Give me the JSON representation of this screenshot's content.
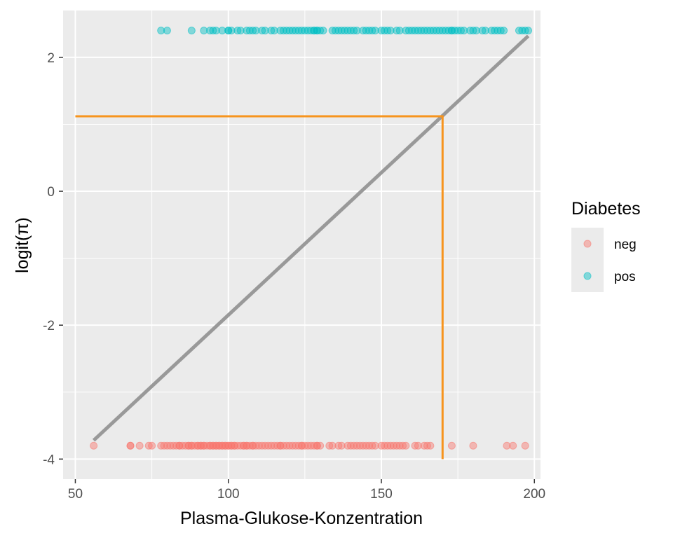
{
  "chart_data": {
    "type": "scatter",
    "xlabel": "Plasma-Glukose-Konzentration",
    "ylabel": "logit(π)",
    "xlim": [
      46,
      202
    ],
    "ylim": [
      -4.3,
      2.7
    ],
    "x_ticks": [
      50,
      100,
      150,
      200
    ],
    "y_ticks": [
      -4,
      -2,
      0,
      2
    ],
    "grid": true,
    "legend": {
      "title": "Diabetes",
      "placement": "right"
    },
    "series": [
      {
        "name": "neg",
        "color": "#F8766D",
        "y": -3.8,
        "x": [
          56,
          68,
          68,
          71,
          74,
          75,
          78,
          79,
          80,
          81,
          82,
          83,
          84,
          84,
          85,
          86,
          87,
          87,
          88,
          88,
          89,
          90,
          90,
          91,
          91,
          92,
          92,
          93,
          94,
          94,
          95,
          95,
          96,
          96,
          97,
          97,
          98,
          98,
          99,
          99,
          100,
          100,
          101,
          101,
          102,
          102,
          103,
          104,
          105,
          105,
          106,
          106,
          107,
          108,
          108,
          109,
          110,
          111,
          112,
          113,
          114,
          115,
          116,
          117,
          117,
          118,
          119,
          120,
          121,
          122,
          123,
          124,
          124,
          125,
          126,
          127,
          128,
          129,
          129,
          130,
          133,
          134,
          136,
          137,
          139,
          140,
          141,
          142,
          143,
          144,
          145,
          146,
          147,
          148,
          150,
          151,
          152,
          153,
          154,
          155,
          156,
          157,
          158,
          161,
          162,
          164,
          165,
          166,
          173,
          180,
          191,
          193,
          197
        ]
      },
      {
        "name": "pos",
        "color": "#00BFC4",
        "y": 2.4,
        "x": [
          78,
          80,
          88,
          92,
          94,
          95,
          96,
          98,
          100,
          100,
          101,
          103,
          104,
          106,
          107,
          108,
          109,
          111,
          112,
          114,
          115,
          117,
          118,
          119,
          120,
          121,
          122,
          123,
          124,
          125,
          126,
          127,
          128,
          128,
          129,
          129,
          130,
          131,
          134,
          135,
          136,
          137,
          138,
          139,
          140,
          141,
          142,
          144,
          145,
          146,
          147,
          148,
          150,
          151,
          152,
          153,
          155,
          156,
          158,
          159,
          160,
          161,
          162,
          163,
          164,
          165,
          166,
          167,
          168,
          169,
          170,
          171,
          172,
          173,
          173,
          174,
          175,
          176,
          177,
          179,
          180,
          181,
          183,
          184,
          186,
          187,
          188,
          189,
          190,
          195,
          196,
          197,
          198
        ]
      }
    ],
    "fit_line": {
      "color": "#999999",
      "points": [
        [
          56,
          -3.72
        ],
        [
          198,
          2.32
        ]
      ]
    },
    "reference_line": {
      "color": "#F7941D",
      "points": [
        [
          50,
          1.12
        ],
        [
          170,
          1.12
        ],
        [
          170,
          -4.0
        ]
      ]
    }
  }
}
